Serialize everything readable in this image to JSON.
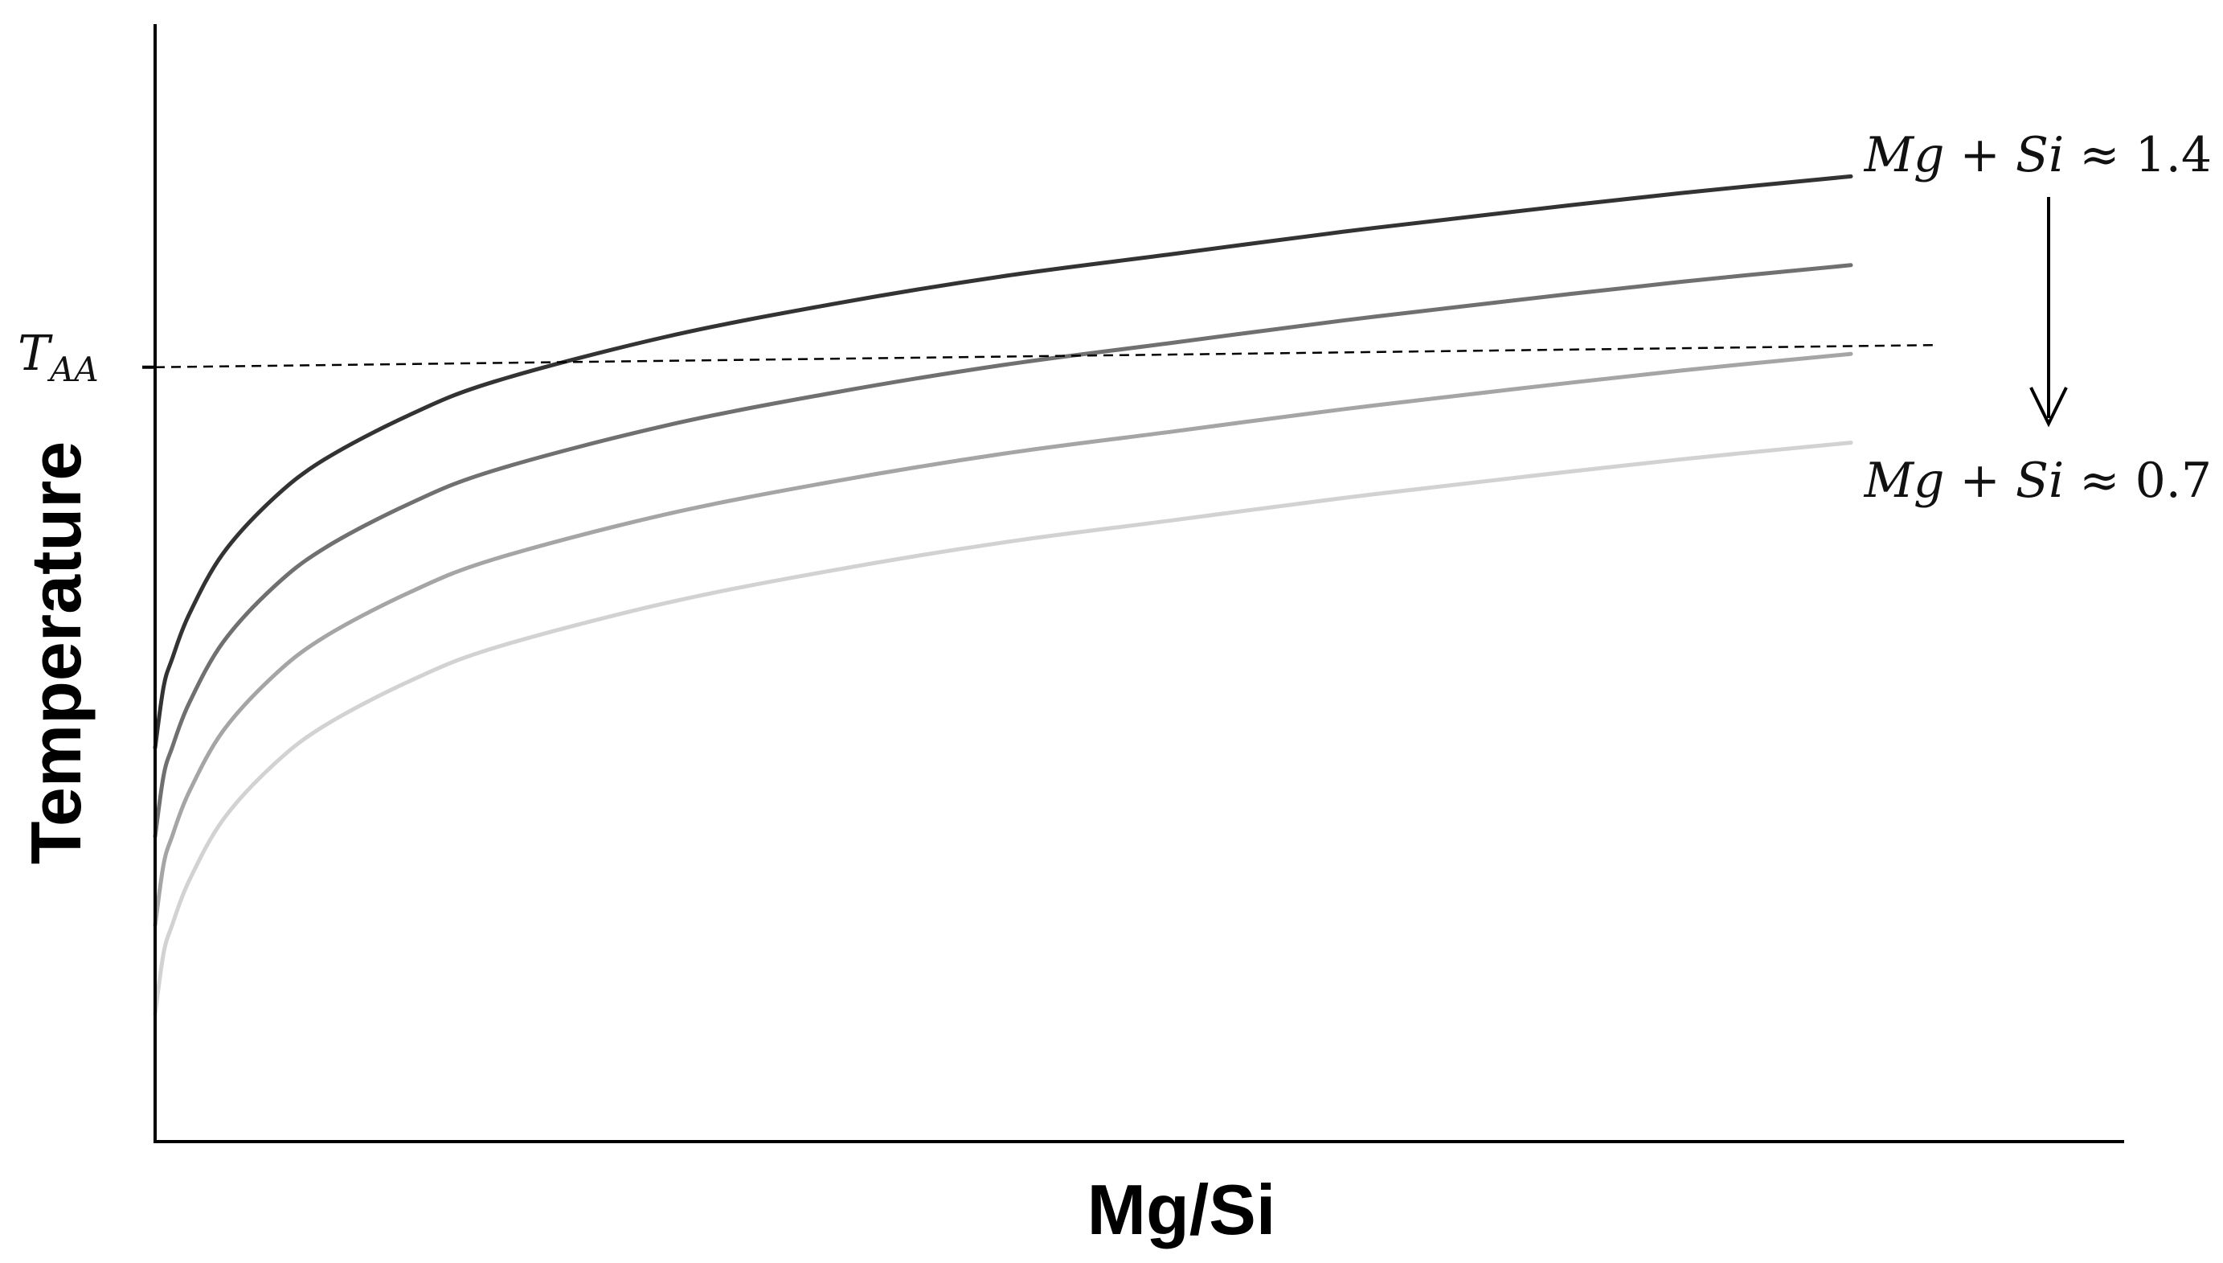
{
  "chart_data": {
    "type": "line",
    "title": "",
    "xlabel": "Mg/Si",
    "ylabel": "Temperature",
    "xlim": [
      0,
      1
    ],
    "ylim": [
      0,
      1
    ],
    "grid": false,
    "x": [
      0,
      0.005,
      0.01,
      0.02,
      0.04,
      0.07,
      0.1,
      0.15,
      0.2,
      0.3,
      0.4,
      0.5,
      0.6,
      0.7,
      0.8,
      0.9,
      1.0
    ],
    "series": [
      {
        "color": "#333333",
        "values": [
          0.355,
          0.41,
          0.435,
          0.475,
          0.53,
          0.58,
          0.615,
          0.655,
          0.685,
          0.725,
          0.755,
          0.78,
          0.8,
          0.82,
          0.838,
          0.855,
          0.87
        ]
      },
      {
        "color": "#707070",
        "values": [
          0.275,
          0.33,
          0.355,
          0.395,
          0.45,
          0.5,
          0.535,
          0.575,
          0.605,
          0.645,
          0.675,
          0.7,
          0.72,
          0.74,
          0.758,
          0.775,
          0.79
        ]
      },
      {
        "color": "#a5a5a5",
        "values": [
          0.195,
          0.25,
          0.275,
          0.315,
          0.37,
          0.42,
          0.455,
          0.495,
          0.525,
          0.565,
          0.595,
          0.62,
          0.64,
          0.66,
          0.678,
          0.695,
          0.71
        ]
      },
      {
        "color": "#d2d2d2",
        "values": [
          0.115,
          0.17,
          0.195,
          0.235,
          0.29,
          0.34,
          0.375,
          0.415,
          0.445,
          0.485,
          0.515,
          0.54,
          0.56,
          0.58,
          0.598,
          0.615,
          0.63
        ]
      }
    ],
    "reference_line": {
      "label_main": "T",
      "label_sub": "AA",
      "y_start": 0.698,
      "y_end": 0.718,
      "x_end": 1.05,
      "style": "dashed"
    },
    "annotations": {
      "top": {
        "pre": "Mg + Si ≈ ",
        "num": "1.4"
      },
      "bottom": {
        "pre": "Mg + Si ≈ ",
        "num": "0.7"
      },
      "arrow": "down"
    }
  }
}
